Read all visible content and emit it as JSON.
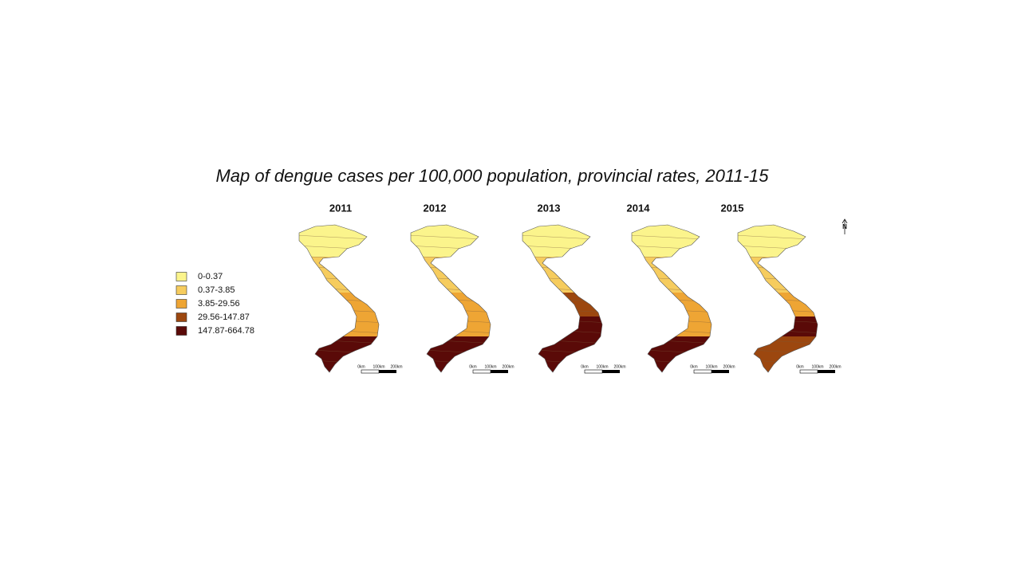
{
  "title": "Map of dengue cases per 100,000 population, provincial rates, 2011-15",
  "legend": {
    "items": [
      {
        "label": "0-0.37",
        "color": "#fbf48c"
      },
      {
        "label": "0.37-3.85",
        "color": "#f6cc5e"
      },
      {
        "label": "3.85-29.56",
        "color": "#eea534"
      },
      {
        "label": "29.56-147.87",
        "color": "#9c470f"
      },
      {
        "label": "147.87-664.78",
        "color": "#5a0a08"
      }
    ]
  },
  "maps": [
    {
      "year": "2011"
    },
    {
      "year": "2012"
    },
    {
      "year": "2013"
    },
    {
      "year": "2014"
    },
    {
      "year": "2015"
    }
  ],
  "scale_bar": {
    "labels": [
      "0km",
      "100km",
      "200km"
    ]
  },
  "north_arrow": "N"
}
